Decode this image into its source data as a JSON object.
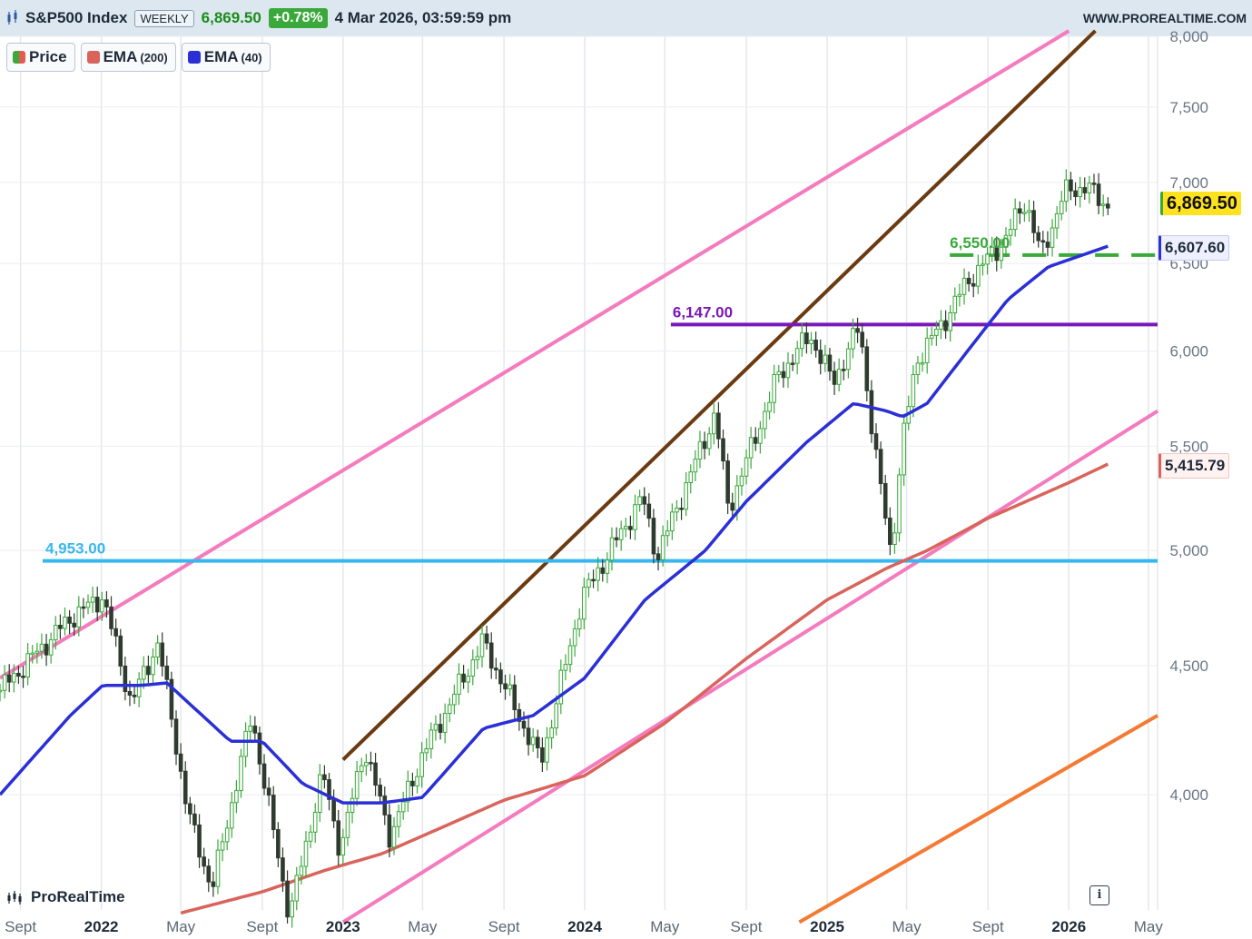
{
  "header": {
    "symbol": "S&P500 Index",
    "timeframe": "WEEKLY",
    "last_price": "6,869.50",
    "change_pct": "+0.78%",
    "datetime": "4 Mar 2026, 03:59:59 pm",
    "website": "WWW.PROREALTIME.COM"
  },
  "legend": [
    {
      "label": "Price",
      "sub": "",
      "color": "#3aa83a"
    },
    {
      "label": "EMA",
      "sub": "(200)",
      "color": "#d9645c"
    },
    {
      "label": "EMA",
      "sub": "(40)",
      "color": "#2b2fd6"
    }
  ],
  "badges": {
    "price": "6,869.50",
    "ema40": "6,607.60",
    "ema200": "5,415.79"
  },
  "watermark": "ProRealTime",
  "info_button": "i",
  "chart_data": {
    "type": "candlestick",
    "title": "S&P500 Index",
    "timeframe": "weekly",
    "y_axis_position": "right",
    "yscale": "log",
    "ylim": [
      3600,
      8000
    ],
    "y_ticks": [
      {
        "value": 8000,
        "label": "8,000"
      },
      {
        "value": 7500,
        "label": "7,500"
      },
      {
        "value": 7000,
        "label": "7,000"
      },
      {
        "value": 6500,
        "label": "6,500"
      },
      {
        "value": 6000,
        "label": "6,000"
      },
      {
        "value": 5500,
        "label": "5,500"
      },
      {
        "value": 5000,
        "label": "5,000"
      },
      {
        "value": 4500,
        "label": "4,500"
      },
      {
        "value": 4000,
        "label": "4,000"
      }
    ],
    "xlim": [
      "2021-08-01",
      "2026-05-15"
    ],
    "x_ticks": [
      {
        "date": "2021-09-01",
        "label": "Sept"
      },
      {
        "date": "2022-01-01",
        "label": "2022"
      },
      {
        "date": "2022-05-01",
        "label": "May"
      },
      {
        "date": "2022-09-01",
        "label": "Sept"
      },
      {
        "date": "2023-01-01",
        "label": "2023"
      },
      {
        "date": "2023-05-01",
        "label": "May"
      },
      {
        "date": "2023-09-01",
        "label": "Sept"
      },
      {
        "date": "2024-01-01",
        "label": "2024"
      },
      {
        "date": "2024-05-01",
        "label": "May"
      },
      {
        "date": "2024-09-01",
        "label": "Sept"
      },
      {
        "date": "2025-01-01",
        "label": "2025"
      },
      {
        "date": "2025-05-01",
        "label": "May"
      },
      {
        "date": "2025-09-01",
        "label": "Sept"
      },
      {
        "date": "2026-01-01",
        "label": "2026"
      },
      {
        "date": "2026-05-01",
        "label": "May"
      }
    ],
    "close_anchors": [
      [
        "2021-08-01",
        4400
      ],
      [
        "2021-11-15",
        4700
      ],
      [
        "2022-01-03",
        4795
      ],
      [
        "2022-02-15",
        4350
      ],
      [
        "2022-03-28",
        4600
      ],
      [
        "2022-05-12",
        3930
      ],
      [
        "2022-06-17",
        3670
      ],
      [
        "2022-08-16",
        4300
      ],
      [
        "2022-10-12",
        3580
      ],
      [
        "2022-12-01",
        4080
      ],
      [
        "2022-12-28",
        3800
      ],
      [
        "2023-02-02",
        4180
      ],
      [
        "2023-03-13",
        3850
      ],
      [
        "2023-05-01",
        4150
      ],
      [
        "2023-07-31",
        4600
      ],
      [
        "2023-10-27",
        4120
      ],
      [
        "2023-12-28",
        4790
      ],
      [
        "2024-03-28",
        5250
      ],
      [
        "2024-04-19",
        4970
      ],
      [
        "2024-07-16",
        5670
      ],
      [
        "2024-08-05",
        5190
      ],
      [
        "2024-10-18",
        5860
      ],
      [
        "2024-12-06",
        6090
      ],
      [
        "2025-01-10",
        5830
      ],
      [
        "2025-02-19",
        6140
      ],
      [
        "2025-03-13",
        5500
      ],
      [
        "2025-04-08",
        4980
      ],
      [
        "2025-04-25",
        5530
      ],
      [
        "2025-05-16",
        5950
      ],
      [
        "2025-06-27",
        6170
      ],
      [
        "2025-07-31",
        6390
      ],
      [
        "2025-09-26",
        6640
      ],
      [
        "2025-10-28",
        6890
      ],
      [
        "2025-11-20",
        6540
      ],
      [
        "2025-12-24",
        6930
      ],
      [
        "2026-01-27",
        6980
      ],
      [
        "2026-02-20",
        6870
      ],
      [
        "2026-03-04",
        6869.5
      ]
    ],
    "ema40_anchors": [
      [
        "2021-08-01",
        4000
      ],
      [
        "2021-11-15",
        4300
      ],
      [
        "2022-01-03",
        4420
      ],
      [
        "2022-03-01",
        4420
      ],
      [
        "2022-04-10",
        4430
      ],
      [
        "2022-07-15",
        4200
      ],
      [
        "2022-09-01",
        4200
      ],
      [
        "2022-11-01",
        4040
      ],
      [
        "2023-01-01",
        3970
      ],
      [
        "2023-03-01",
        3970
      ],
      [
        "2023-05-01",
        3990
      ],
      [
        "2023-08-01",
        4250
      ],
      [
        "2023-10-15",
        4300
      ],
      [
        "2024-01-01",
        4450
      ],
      [
        "2024-04-01",
        4780
      ],
      [
        "2024-07-01",
        5000
      ],
      [
        "2024-09-01",
        5230
      ],
      [
        "2024-12-01",
        5520
      ],
      [
        "2025-02-10",
        5720
      ],
      [
        "2025-04-01",
        5680
      ],
      [
        "2025-04-25",
        5650
      ],
      [
        "2025-06-01",
        5720
      ],
      [
        "2025-08-01",
        6000
      ],
      [
        "2025-10-01",
        6290
      ],
      [
        "2025-12-01",
        6480
      ],
      [
        "2026-03-04",
        6607.6
      ]
    ],
    "ema200_anchors": [
      [
        "2022-05-01",
        3590
      ],
      [
        "2022-09-01",
        3660
      ],
      [
        "2022-12-01",
        3730
      ],
      [
        "2023-03-01",
        3790
      ],
      [
        "2023-09-01",
        3980
      ],
      [
        "2024-01-01",
        4070
      ],
      [
        "2024-05-01",
        4270
      ],
      [
        "2024-09-01",
        4530
      ],
      [
        "2025-01-01",
        4780
      ],
      [
        "2025-04-01",
        4920
      ],
      [
        "2025-06-01",
        5000
      ],
      [
        "2025-09-01",
        5150
      ],
      [
        "2026-01-01",
        5320
      ],
      [
        "2026-03-04",
        5415.79
      ]
    ],
    "levels": [
      {
        "value": 4953,
        "label": "4,953.00",
        "color": "#37b7f0",
        "style": "solid",
        "from": "2021-08-01"
      },
      {
        "value": 6147,
        "label": "6,147.00",
        "color": "#7a18b9",
        "style": "solid",
        "from": "2024-05-10"
      },
      {
        "value": 6550,
        "label": "6,550.00",
        "color": "#3aa83a",
        "style": "dashed",
        "from": "2025-06-01"
      }
    ],
    "trendlines": [
      {
        "color": "#f47bbd",
        "points": [
          [
            "2021-08-01",
            4450
          ],
          [
            "2026-01-01",
            8040
          ]
        ]
      },
      {
        "color": "#f47bbd",
        "points": [
          [
            "2023-01-01",
            3560
          ],
          [
            "2026-05-15",
            5680
          ]
        ]
      },
      {
        "color": "#6b3a10",
        "points": [
          [
            "2023-01-01",
            4130
          ],
          [
            "2026-02-10",
            8040
          ]
        ]
      },
      {
        "color": "#f47a34",
        "points": [
          [
            "2024-11-20",
            3560
          ],
          [
            "2026-05-15",
            4300
          ]
        ]
      }
    ]
  }
}
